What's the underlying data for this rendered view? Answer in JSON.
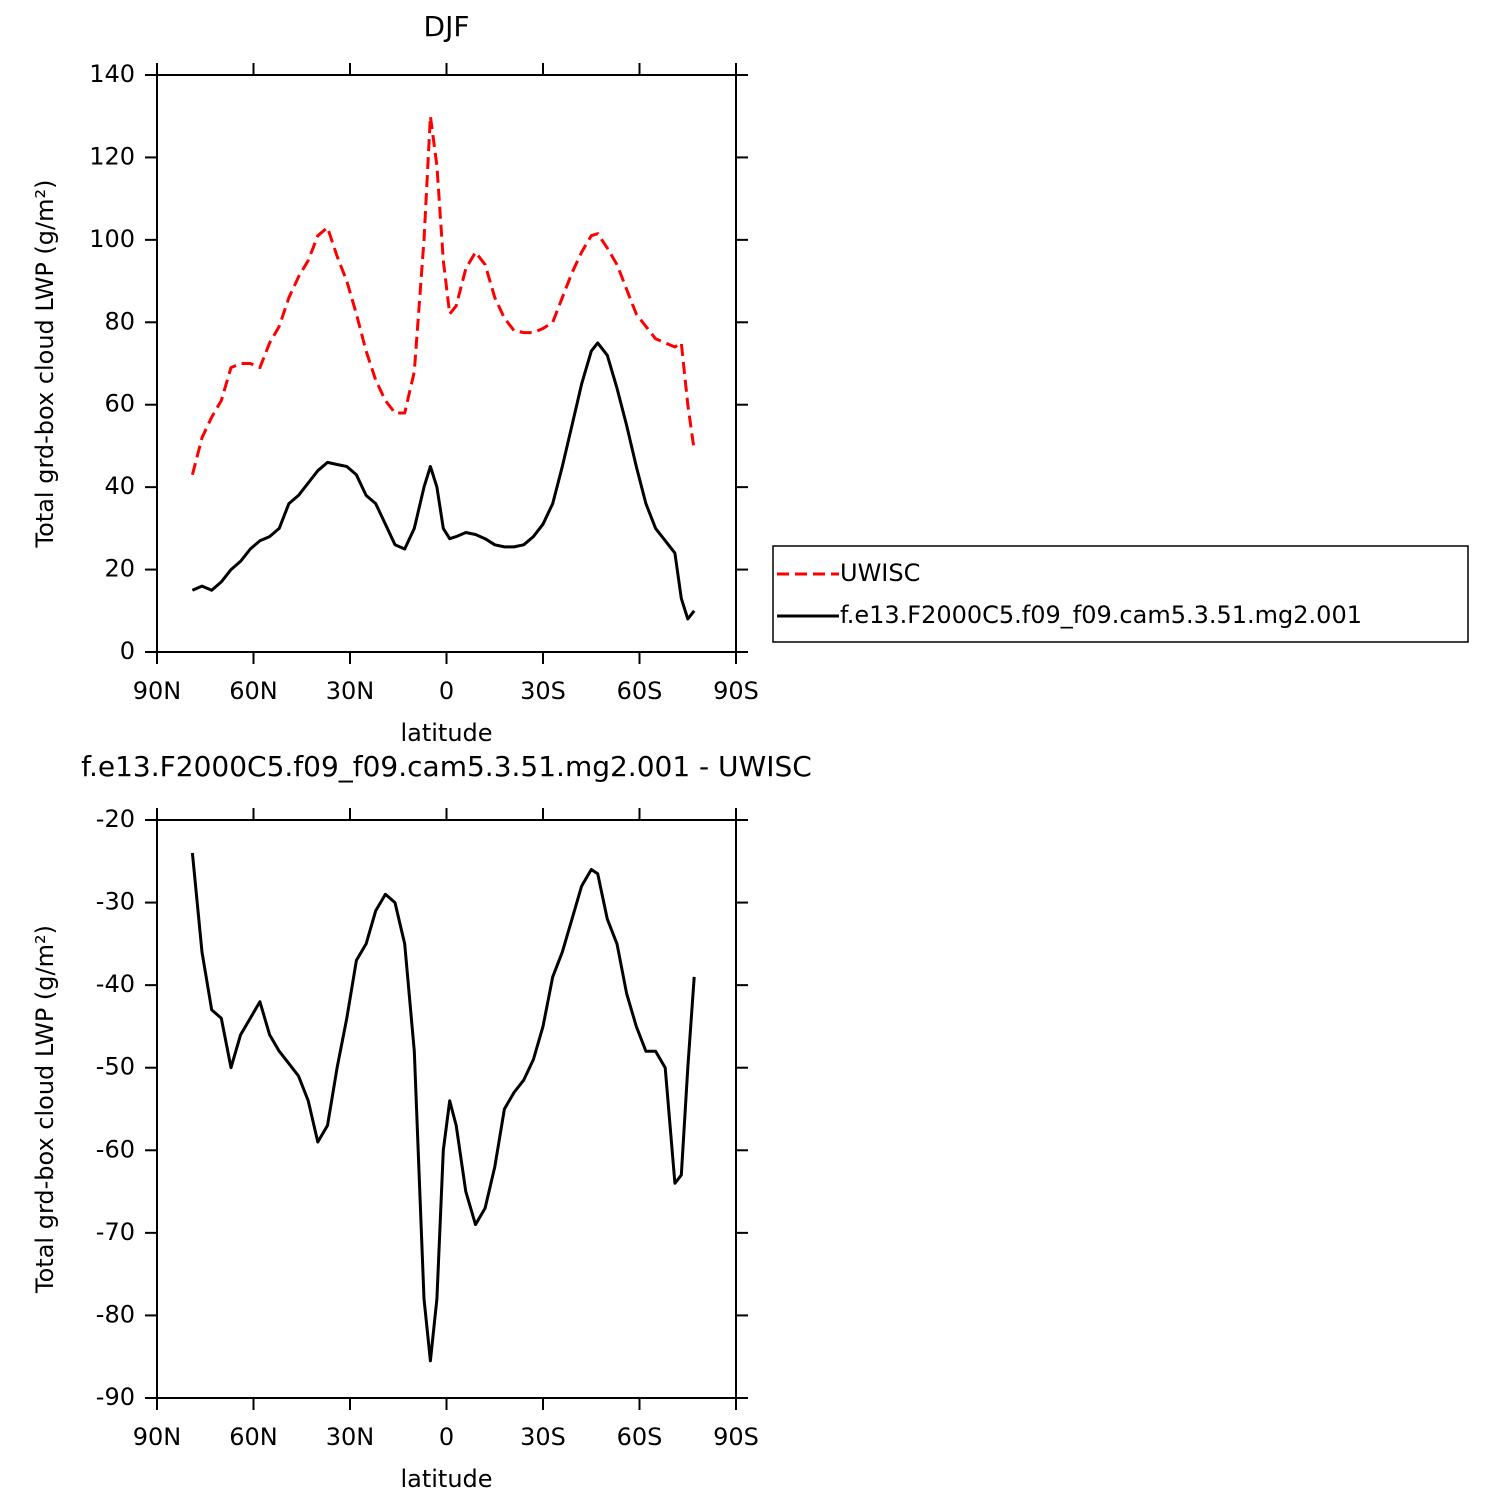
{
  "chart_data": [
    {
      "type": "line",
      "title": "DJF",
      "x_label": "latitude",
      "y_label": "Total grd-box cloud LWP (g/m²)",
      "x": [
        79,
        76,
        73,
        70,
        67,
        64,
        61,
        58,
        55,
        52,
        49,
        46,
        43,
        40,
        37,
        34,
        31,
        28,
        25,
        22,
        19,
        16,
        13,
        10,
        7,
        5,
        3,
        1,
        -1,
        -3,
        -6,
        -9,
        -12,
        -15,
        -18,
        -21,
        -24,
        -27,
        -30,
        -33,
        -36,
        -39,
        -42,
        -45,
        -47,
        -50,
        -53,
        -56,
        -59,
        -62,
        -65,
        -68,
        -71,
        -73,
        -75,
        -77
      ],
      "series": [
        {
          "name": "UWISC",
          "color": "#ff0000",
          "line_style": "dashed",
          "values": [
            43,
            52,
            57,
            61,
            69,
            70,
            70,
            69,
            75,
            79,
            86,
            91,
            95,
            101,
            103,
            96,
            90,
            82,
            73,
            66,
            61,
            58,
            58,
            68,
            100,
            130,
            118,
            95,
            82,
            84,
            93,
            97,
            94,
            86,
            81,
            78,
            77.5,
            77.5,
            78.5,
            80,
            86,
            92,
            97,
            101,
            101.5,
            98,
            94,
            88,
            82,
            79,
            76,
            75,
            74,
            75,
            60,
            49
          ]
        },
        {
          "name": "f.e13.F2000C5.f09_f09.cam5.3.51.mg2.001",
          "color": "#000000",
          "line_style": "solid",
          "values": [
            15,
            16,
            15,
            17,
            20,
            22,
            25,
            27,
            28,
            30,
            36,
            38,
            41,
            44,
            46,
            45.5,
            45,
            43,
            38,
            36,
            31,
            26,
            25,
            30,
            40,
            45,
            40,
            30,
            27.5,
            28,
            29,
            28.5,
            27.5,
            26,
            25.5,
            25.5,
            26,
            28,
            31,
            36,
            45,
            55,
            65,
            73,
            75,
            72,
            64,
            55,
            45,
            36,
            30,
            27,
            24,
            13,
            8,
            10
          ]
        }
      ],
      "xlim": [
        90,
        -90
      ],
      "xticks": [
        {
          "value": 90,
          "label": "90N"
        },
        {
          "value": 60,
          "label": "60N"
        },
        {
          "value": 30,
          "label": "30N"
        },
        0,
        {
          "value": -30,
          "label": "30S"
        },
        {
          "value": -60,
          "label": "60S"
        },
        {
          "value": -90,
          "label": "90S"
        }
      ],
      "ylim": [
        0,
        140
      ],
      "yticks": [
        0,
        20,
        40,
        60,
        80,
        100,
        120,
        140
      ],
      "legend": "right"
    },
    {
      "type": "line",
      "title": "f.e13.F2000C5.f09_f09.cam5.3.51.mg2.001  - UWISC",
      "x_label": "latitude",
      "y_label": "Total grd-box cloud LWP (g/m²)",
      "x": [
        79,
        76,
        73,
        70,
        67,
        64,
        61,
        58,
        55,
        52,
        49,
        46,
        43,
        40,
        37,
        34,
        31,
        28,
        25,
        22,
        19,
        16,
        13,
        10,
        7,
        5,
        3,
        1,
        -1,
        -3,
        -6,
        -9,
        -12,
        -15,
        -18,
        -21,
        -24,
        -27,
        -30,
        -33,
        -36,
        -39,
        -42,
        -45,
        -47,
        -50,
        -53,
        -56,
        -59,
        -62,
        -65,
        -68,
        -71,
        -73,
        -75,
        -77
      ],
      "values": [
        -24,
        -36,
        -43,
        -44,
        -50,
        -46,
        -44,
        -42,
        -46,
        -48,
        -49.5,
        -51,
        -54,
        -59,
        -57,
        -50,
        -44,
        -37,
        -35,
        -31,
        -29,
        -30,
        -35,
        -48,
        -78,
        -85.5,
        -78,
        -60,
        -54,
        -57,
        -65,
        -69,
        -67,
        -62,
        -55,
        -53,
        -51.5,
        -49,
        -45,
        -39,
        -36,
        -32,
        -28,
        -26,
        -26.5,
        -32,
        -35,
        -41,
        -45,
        -48,
        -48,
        -50,
        -64,
        -63,
        -50,
        -39
      ],
      "color": "#000000",
      "xlim": [
        90,
        -90
      ],
      "xticks": [
        {
          "value": 90,
          "label": "90N"
        },
        {
          "value": 60,
          "label": "60N"
        },
        {
          "value": 30,
          "label": "30N"
        },
        0,
        {
          "value": -30,
          "label": "30S"
        },
        {
          "value": -60,
          "label": "60S"
        },
        {
          "value": -90,
          "label": "90S"
        }
      ],
      "ylim": [
        -90,
        -20
      ],
      "yticks": [
        -90,
        -80,
        -70,
        -60,
        -50,
        -40,
        -30,
        -20
      ]
    }
  ]
}
